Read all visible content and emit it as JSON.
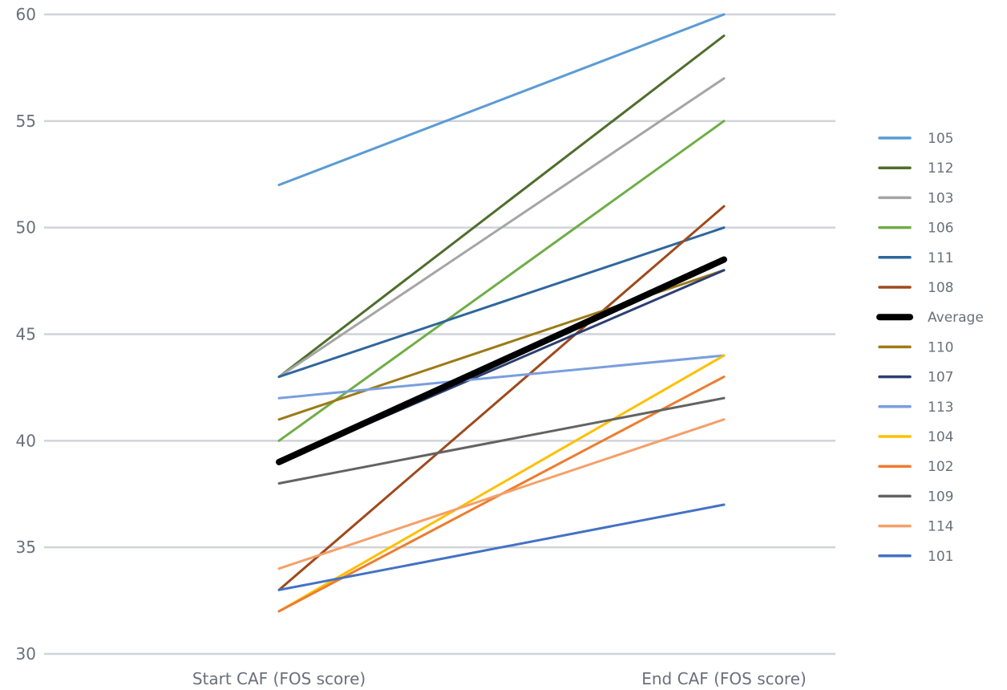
{
  "chart_data": {
    "type": "line",
    "title": "",
    "xlabel": "",
    "ylabel": "",
    "categories": [
      "Start CAF (FOS score)",
      "End CAF (FOS score)"
    ],
    "ylim": [
      30,
      60
    ],
    "yticks": [
      30,
      35,
      40,
      45,
      50,
      55,
      60
    ],
    "grid": true,
    "legend_position": "right",
    "series": [
      {
        "name": "105",
        "values": [
          52,
          60
        ],
        "color": "#5b9bd5",
        "width": "normal"
      },
      {
        "name": "112",
        "values": [
          43,
          59
        ],
        "color": "#4e6e2c",
        "width": "normal"
      },
      {
        "name": "103",
        "values": [
          43,
          57
        ],
        "color": "#a5a5a5",
        "width": "normal"
      },
      {
        "name": "106",
        "values": [
          40,
          55
        ],
        "color": "#70ad47",
        "width": "normal"
      },
      {
        "name": "111",
        "values": [
          43,
          50
        ],
        "color": "#2e679c",
        "width": "normal"
      },
      {
        "name": "108",
        "values": [
          33,
          51
        ],
        "color": "#9e4a1c",
        "width": "normal"
      },
      {
        "name": "Average",
        "values": [
          39,
          48.5
        ],
        "color": "#000000",
        "width": "bold"
      },
      {
        "name": "110",
        "values": [
          41,
          48
        ],
        "color": "#9c7a16",
        "width": "normal"
      },
      {
        "name": "107",
        "values": [
          39,
          48
        ],
        "color": "#2b3f73",
        "width": "normal"
      },
      {
        "name": "113",
        "values": [
          42,
          44
        ],
        "color": "#7a9ede",
        "width": "normal"
      },
      {
        "name": "104",
        "values": [
          32,
          44
        ],
        "color": "#ffc000",
        "width": "normal"
      },
      {
        "name": "102",
        "values": [
          32,
          43
        ],
        "color": "#ed7d31",
        "width": "normal"
      },
      {
        "name": "109",
        "values": [
          38,
          42
        ],
        "color": "#636363",
        "width": "normal"
      },
      {
        "name": "114",
        "values": [
          34,
          41
        ],
        "color": "#f4a06a",
        "width": "normal"
      },
      {
        "name": "101",
        "values": [
          33,
          37
        ],
        "color": "#4472c4",
        "width": "normal"
      }
    ]
  }
}
